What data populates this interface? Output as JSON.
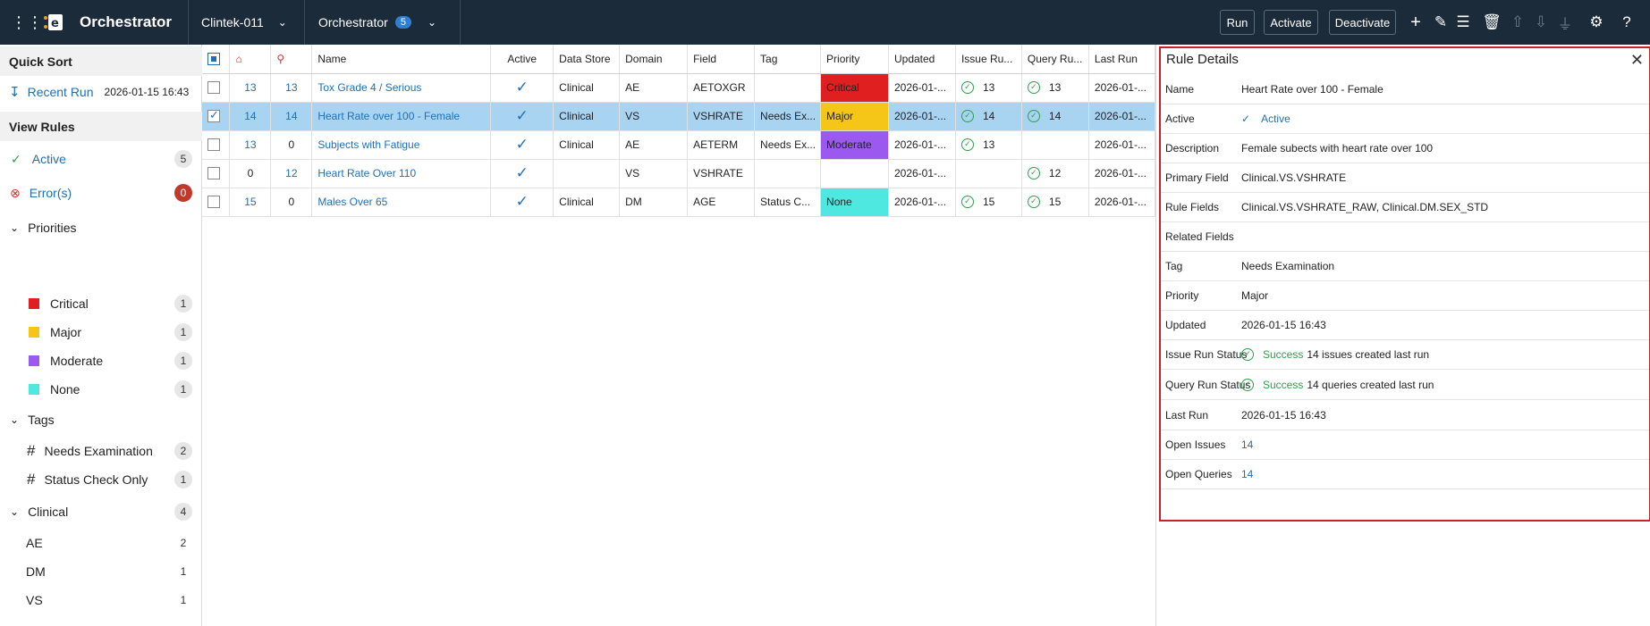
{
  "topbar": {
    "app_title": "Orchestrator",
    "workspace": "Clintek-011",
    "module": "Orchestrator",
    "module_count": "5",
    "buttons": {
      "run": "Run",
      "activate": "Activate",
      "deactivate": "Deactivate"
    }
  },
  "sidebar": {
    "quick_sort": "Quick Sort",
    "recent_run_label": "Recent Run",
    "recent_run_time": "2026-01-15 16:43",
    "view_rules": "View Rules",
    "active": {
      "label": "Active",
      "count": "5"
    },
    "errors": {
      "label": "Error(s)",
      "count": "0"
    },
    "priorities": {
      "label": "Priorities",
      "items": [
        {
          "label": "Critical",
          "count": "1",
          "color": "#e02020"
        },
        {
          "label": "Major",
          "count": "1",
          "color": "#f5c518"
        },
        {
          "label": "Moderate",
          "count": "1",
          "color": "#9b59f0"
        },
        {
          "label": "None",
          "count": "1",
          "color": "#4ee8e0"
        }
      ]
    },
    "tags": {
      "label": "Tags",
      "items": [
        {
          "label": "Needs Examination",
          "count": "2"
        },
        {
          "label": "Status Check Only",
          "count": "1"
        }
      ]
    },
    "clinical": {
      "label": "Clinical",
      "count": "4",
      "items": [
        {
          "label": "AE",
          "count": "2"
        },
        {
          "label": "DM",
          "count": "1"
        },
        {
          "label": "VS",
          "count": "1"
        }
      ]
    }
  },
  "table": {
    "columns": [
      "Name",
      "Active",
      "Data Store",
      "Domain",
      "Field",
      "Tag",
      "Priority",
      "Updated",
      "Issue Ru...",
      "Query Ru...",
      "Last Run"
    ],
    "rows": [
      {
        "issues": "13",
        "queries": "13",
        "name": "Tox Grade 4 / Serious",
        "datastore": "Clinical",
        "domain": "AE",
        "field": "AETOXGR",
        "tag": "",
        "priority": "Critical",
        "priority_color": "#e02020",
        "updated": "2026-01-...",
        "issue_run": "13",
        "query_run": "13",
        "last_run": "2026-01-..."
      },
      {
        "issues": "14",
        "queries": "14",
        "name": "Heart Rate over 100 - Female",
        "datastore": "Clinical",
        "domain": "VS",
        "field": "VSHRATE",
        "tag": "Needs Ex...",
        "priority": "Major",
        "priority_color": "#f5c518",
        "updated": "2026-01-...",
        "issue_run": "14",
        "query_run": "14",
        "last_run": "2026-01-..."
      },
      {
        "issues": "13",
        "queries": "0",
        "name": "Subjects with Fatigue",
        "datastore": "Clinical",
        "domain": "AE",
        "field": "AETERM",
        "tag": "Needs Ex...",
        "priority": "Moderate",
        "priority_color": "#9b59f0",
        "updated": "2026-01-...",
        "issue_run": "13",
        "query_run": "",
        "last_run": "2026-01-..."
      },
      {
        "issues": "0",
        "queries": "12",
        "name": "Heart Rate Over 110",
        "datastore": "",
        "domain": "VS",
        "field": "VSHRATE",
        "tag": "",
        "priority": "",
        "priority_color": "",
        "updated": "2026-01-...",
        "issue_run": "",
        "query_run": "12",
        "last_run": "2026-01-..."
      },
      {
        "issues": "15",
        "queries": "0",
        "name": "Males Over 65",
        "datastore": "Clinical",
        "domain": "DM",
        "field": "AGE",
        "tag": "Status C...",
        "priority": "None",
        "priority_color": "#4ee8e0",
        "updated": "2026-01-...",
        "issue_run": "15",
        "query_run": "15",
        "last_run": "2026-01-..."
      }
    ]
  },
  "details": {
    "title": "Rule Details",
    "name_label": "Name",
    "name": "Heart Rate over 100 - Female",
    "active_label": "Active",
    "active": "Active",
    "description_label": "Description",
    "description": "Female subects with heart rate over 100",
    "primary_field_label": "Primary Field",
    "primary_field": "Clinical.VS.VSHRATE",
    "rule_fields_label": "Rule Fields",
    "rule_fields": "Clinical.VS.VSHRATE_RAW, Clinical.DM.SEX_STD",
    "related_fields_label": "Related Fields",
    "related_fields": "",
    "tag_label": "Tag",
    "tag": "Needs Examination",
    "priority_label": "Priority",
    "priority": "Major",
    "updated_label": "Updated",
    "updated": "2026-01-15 16:43",
    "issue_run_label": "Issue Run Status",
    "issue_run_status": "Success",
    "issue_run_text": "14 issues created last run",
    "query_run_label": "Query Run Status",
    "query_run_status": "Success",
    "query_run_text": "14 queries created last run",
    "last_run_label": "Last Run",
    "last_run": "2026-01-15 16:43",
    "open_issues_label": "Open Issues",
    "open_issues": "14",
    "open_queries_label": "Open Queries",
    "open_queries": "14"
  }
}
